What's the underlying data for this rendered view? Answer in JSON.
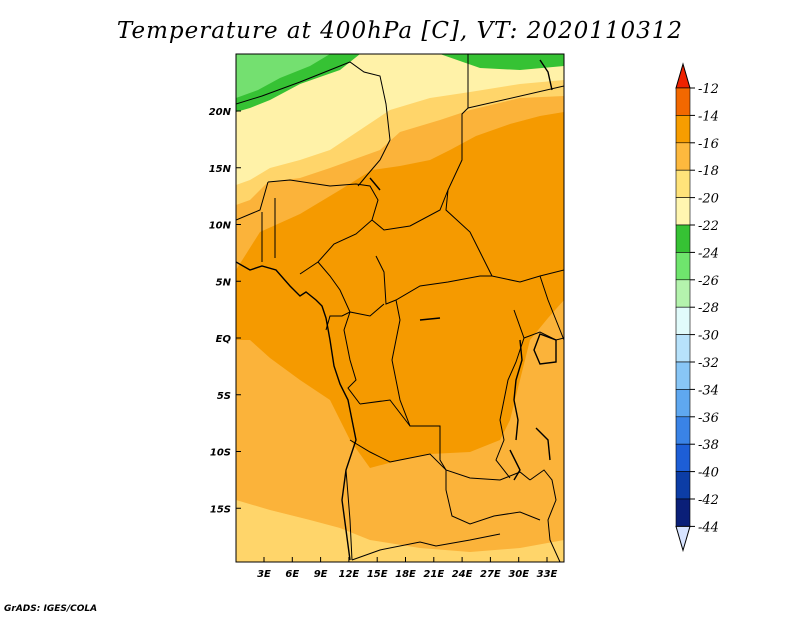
{
  "title": "Temperature at 400hPa [C], VT: 2020110312",
  "credit": "GrADS: IGES/COLA",
  "map": {
    "lon_labels": [
      "3E",
      "6E",
      "9E",
      "12E",
      "15E",
      "18E",
      "21E",
      "24E",
      "27E",
      "30E",
      "33E"
    ],
    "lat_labels": [
      "20N",
      "15N",
      "10N",
      "5N",
      "EQ",
      "5S",
      "10S",
      "15S"
    ],
    "lat_values": [
      20,
      15,
      10,
      5,
      0,
      -5,
      -10,
      -15
    ]
  },
  "colorbar": {
    "levels": [
      "-12",
      "-14",
      "-16",
      "-18",
      "-20",
      "-22",
      "-24",
      "-26",
      "-28",
      "-30",
      "-32",
      "-34",
      "-36",
      "-38",
      "-40",
      "-42",
      "-44"
    ],
    "colors": [
      "#ee2200",
      "#f26800",
      "#f79d00",
      "#fdb93e",
      "#ffe37a",
      "#fff6b0",
      "#36c234",
      "#6fe56d",
      "#b4f3ad",
      "#e1fbfb",
      "#b7e2fb",
      "#88c6f6",
      "#5fa8f0",
      "#3a83e6",
      "#1d5ed6",
      "#0c3da6",
      "#0a1f78",
      "#d8e4ff"
    ]
  },
  "field_colors": {
    "t14": "#f59a00",
    "t16": "#fbb33a",
    "t18": "#ffd56a",
    "t20": "#fff2a8",
    "t24": "#36c234",
    "t26": "#74e070"
  }
}
